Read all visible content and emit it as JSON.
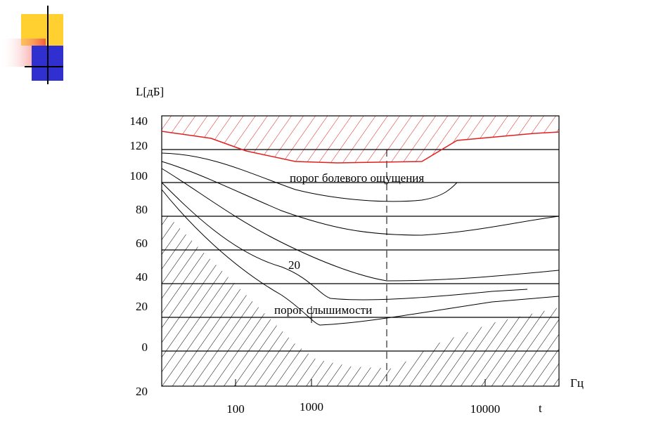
{
  "diagram": {
    "y_axis_label": "L[дБ]",
    "x_axis_label": "Гц",
    "x_extra_label": "t",
    "y_labels": [
      "140",
      "120",
      "100",
      "80",
      "60",
      "40",
      "20",
      "0",
      "20"
    ],
    "x_labels": [
      "100",
      "1000",
      "10000"
    ],
    "annotations": {
      "pain": "порог болевого ощущения",
      "curve": "20",
      "hearing": "порог слышимости"
    }
  }
}
